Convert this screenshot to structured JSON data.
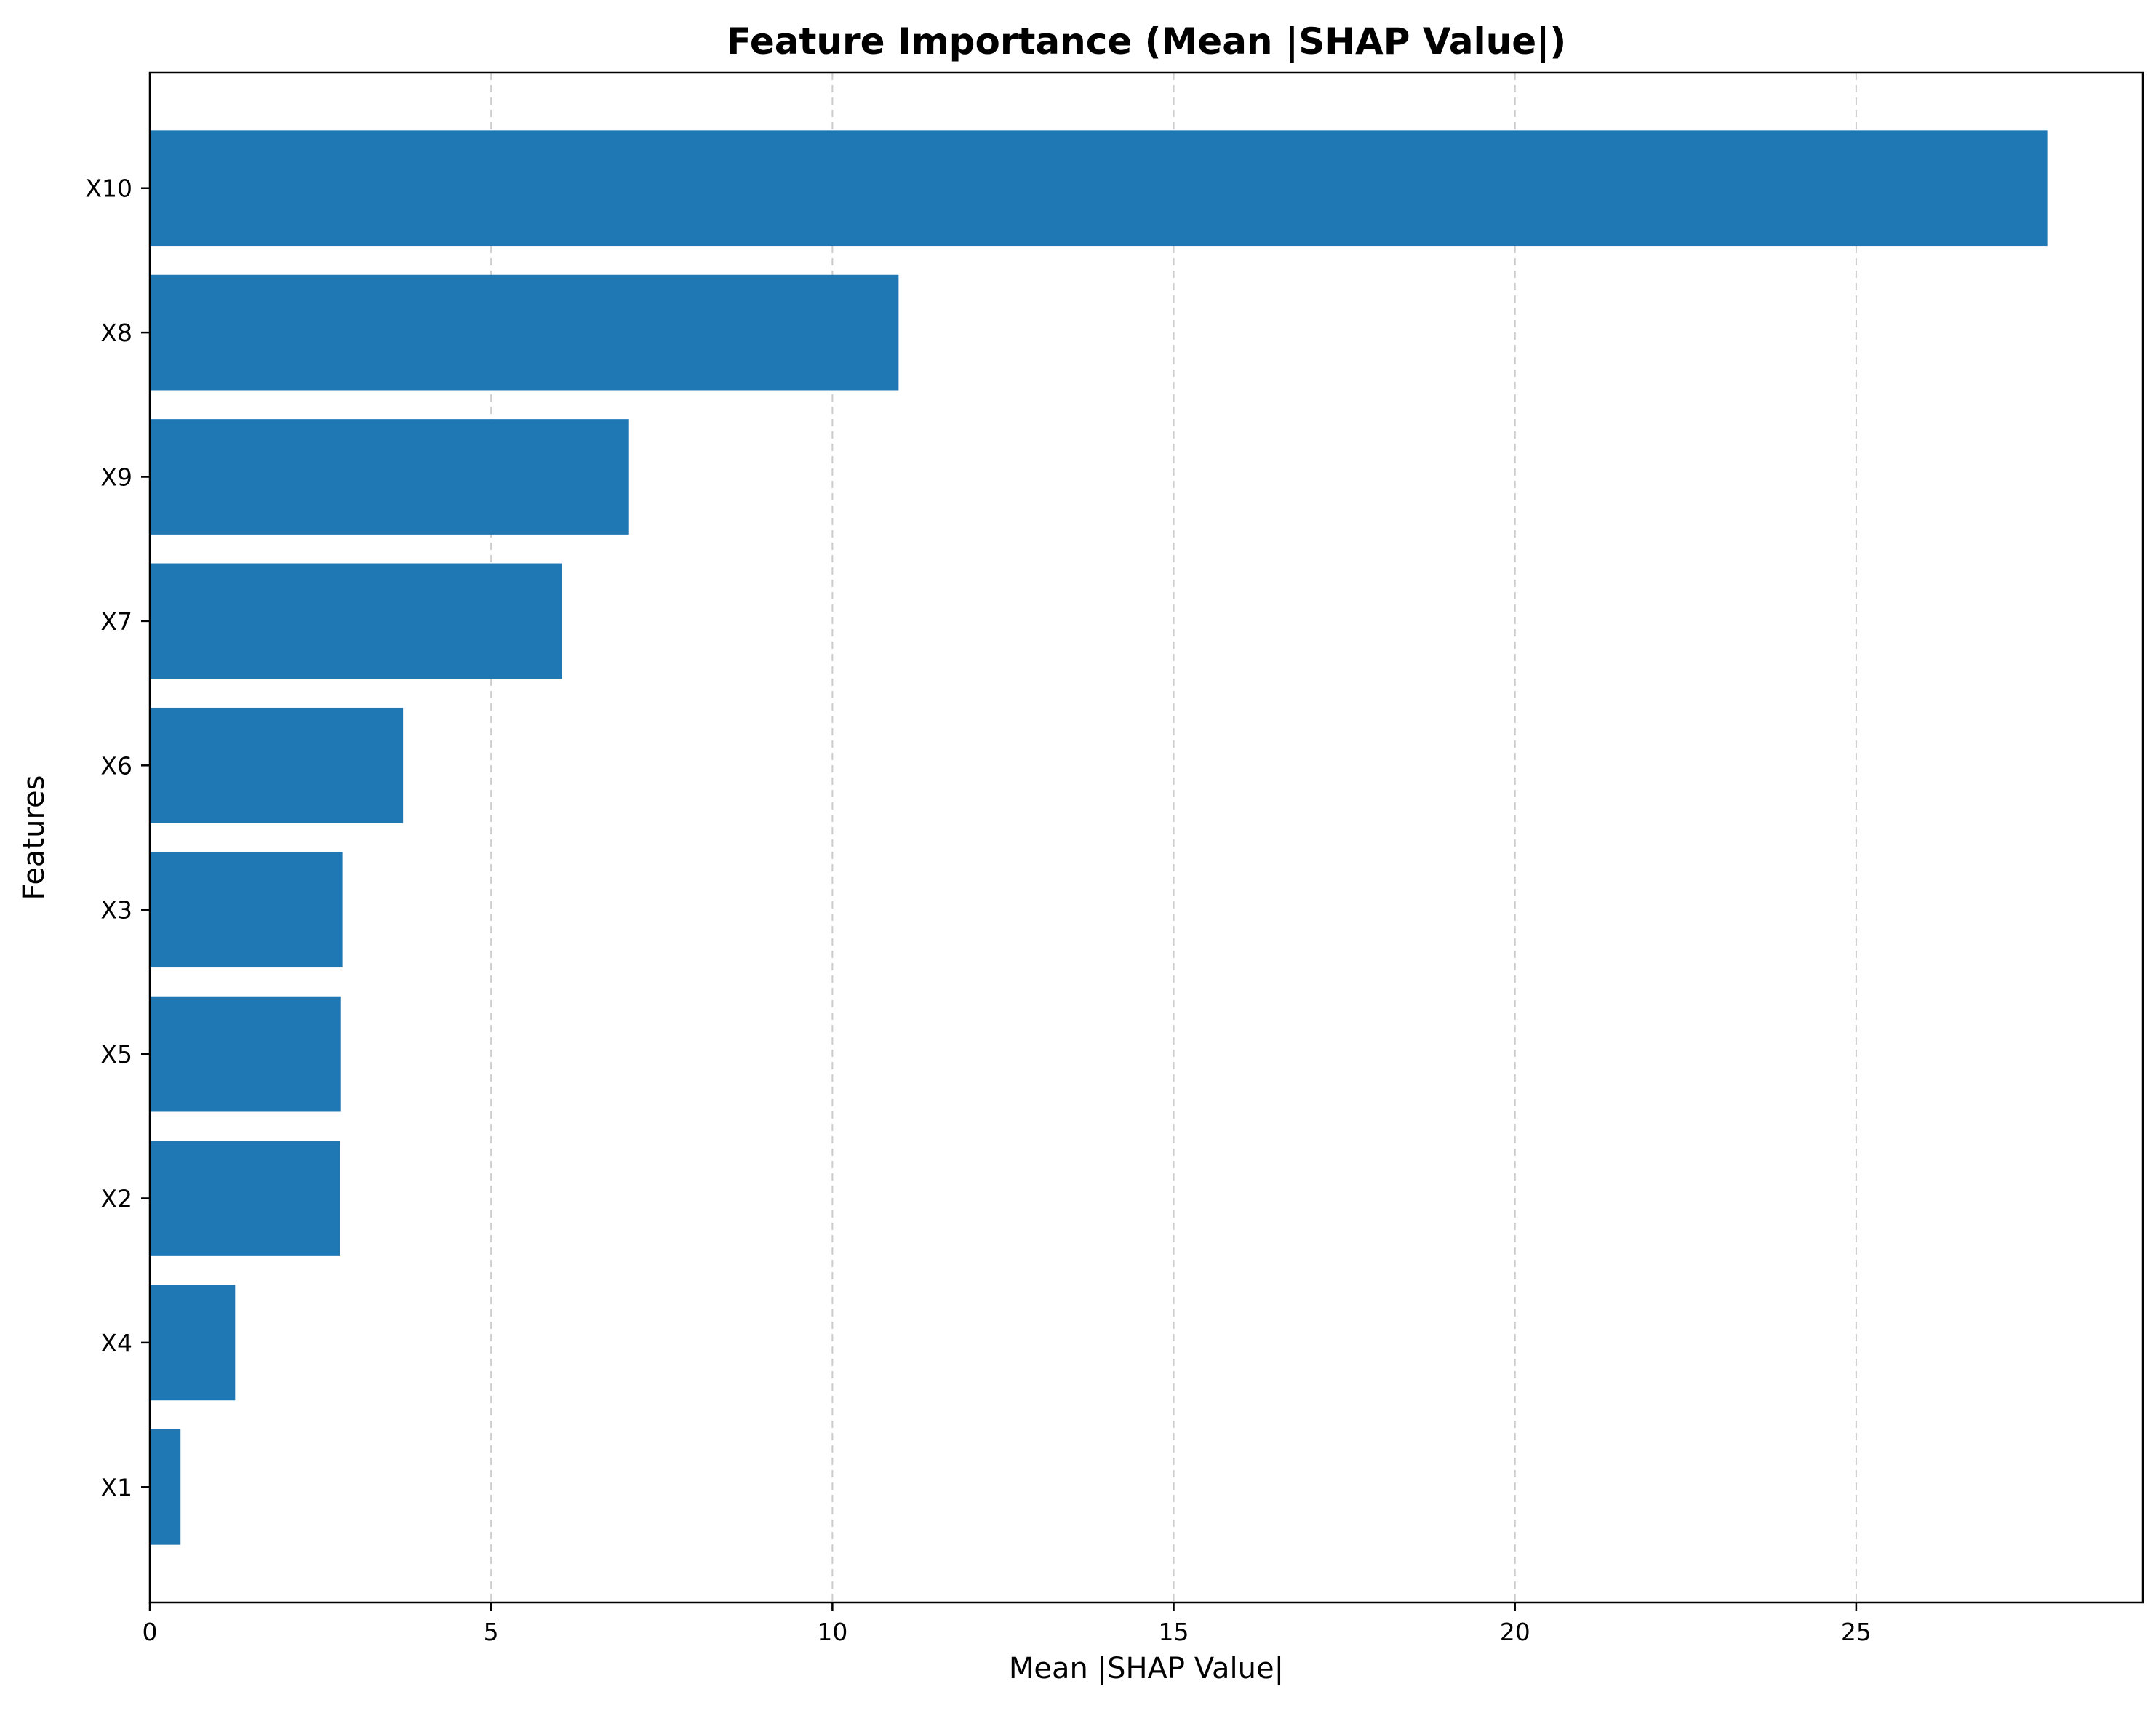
{
  "chart_data": {
    "type": "bar",
    "orientation": "horizontal",
    "title": "Feature Importance (Mean |SHAP Value|)",
    "xlabel": "Mean |SHAP Value|",
    "ylabel": "Features",
    "categories": [
      "X10",
      "X8",
      "X9",
      "X7",
      "X6",
      "X3",
      "X5",
      "X2",
      "X4",
      "X1"
    ],
    "values": [
      27.8,
      10.97,
      7.02,
      6.04,
      3.71,
      2.82,
      2.8,
      2.79,
      1.25,
      0.45
    ],
    "xlim": [
      0,
      29.2
    ],
    "xticks": [
      0,
      5,
      10,
      15,
      20,
      25
    ],
    "grid": "x-dashed",
    "legend": "none",
    "bar_color": "#1f77b4",
    "grid_color": "#cccccc"
  }
}
